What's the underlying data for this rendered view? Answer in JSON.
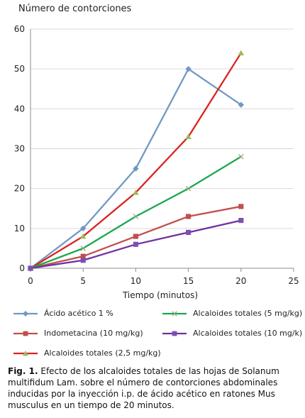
{
  "chart_data": {
    "type": "line",
    "title": "",
    "ylabel": "Número de contorciones",
    "xlabel": "Tiempo (minutos)",
    "xlim": [
      0,
      25
    ],
    "ylim": [
      0,
      60
    ],
    "x_ticks": [
      0,
      5,
      10,
      15,
      20,
      25
    ],
    "y_ticks": [
      0,
      10,
      20,
      30,
      40,
      50,
      60
    ],
    "y_tick_labels": [
      "0",
      "10",
      "20",
      "30",
      "40",
      "50",
      "60"
    ],
    "grid": "horizontal",
    "legend_position": "bottom",
    "series": [
      {
        "name": "Ácido acético 1 %",
        "color": "#7199c4",
        "marker": "diamond",
        "x": [
          0,
          5,
          10,
          15,
          20
        ],
        "y": [
          0,
          10,
          25,
          50,
          41
        ]
      },
      {
        "name": "Indometacina (10 mg/kg)",
        "color": "#c0504d",
        "marker": "square",
        "x": [
          0,
          5,
          10,
          15,
          20
        ],
        "y": [
          0,
          3,
          8,
          13,
          15.5
        ]
      },
      {
        "name": "Alcaloides totales (2,5 mg/kg)",
        "color": "#d9231f",
        "marker": "triangle",
        "marker_color": "#9bbb59",
        "x": [
          0,
          5,
          10,
          15,
          20
        ],
        "y": [
          0,
          8,
          19,
          33,
          54
        ]
      },
      {
        "name": "Alcaloides totales (5 mg/kg)",
        "color": "#1aa84f",
        "marker": "x",
        "marker_color": "#8aa37a",
        "x": [
          0,
          5,
          10,
          15,
          20
        ],
        "y": [
          0,
          5,
          13,
          20,
          28
        ]
      },
      {
        "name": "Alcaloides totales (10 mg/k)",
        "color": "#7030a0",
        "marker": "square",
        "marker_color": "#7d4fb0",
        "x": [
          0,
          5,
          10,
          15,
          20
        ],
        "y": [
          0,
          2,
          6,
          9,
          12
        ]
      }
    ]
  },
  "caption": {
    "label": "Fig. 1.",
    "text": " Efecto de los alcaloides totales de las hojas de Solanum multifidum Lam. sobre el número de contorciones abdominales inducidas por la inyección i.p. de ácido acético en ratones Mus musculus en un tiempo de 20 minutos."
  }
}
